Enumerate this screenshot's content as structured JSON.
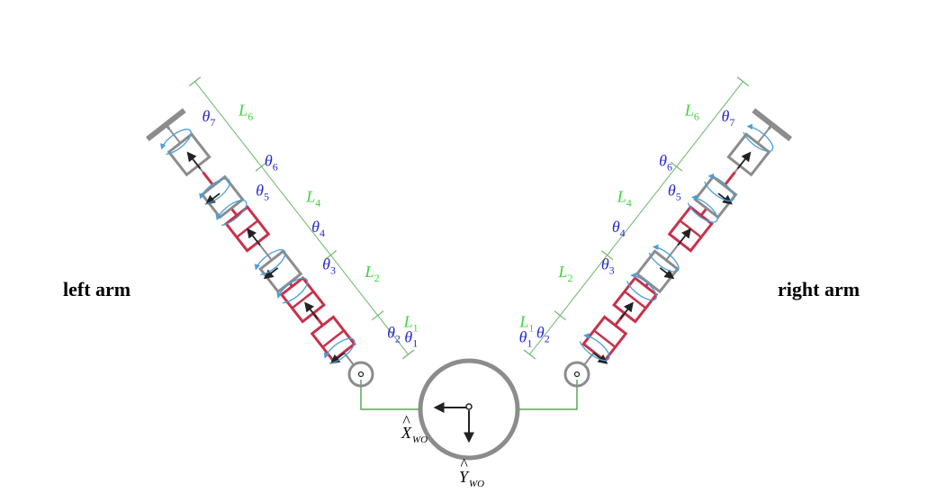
{
  "labels": {
    "left_arm": "left arm",
    "right_arm": "right arm"
  },
  "axes": {
    "x_main": "X",
    "x_sub": "WO",
    "y_main": "Y",
    "y_sub": "WO"
  },
  "theta": {
    "symbol": "θ",
    "subs": [
      "1",
      "2",
      "3",
      "4",
      "5",
      "6",
      "7"
    ]
  },
  "links": {
    "symbol": "L",
    "subs": [
      "1",
      "2",
      "4",
      "6"
    ]
  },
  "colors": {
    "red_joint": "#c8324a",
    "gray_joint": "#8c8c8c",
    "link_red": "#c8324a",
    "link_gray": "#8c8c8c",
    "dim_green": "#6bb56b",
    "length_text": "#3fd43f",
    "theta_text": "#2a2ad0",
    "rotation_arrow": "#4a9fd8"
  }
}
